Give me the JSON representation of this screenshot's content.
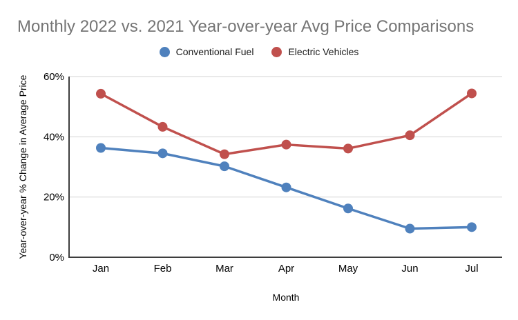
{
  "title": "Monthly 2022 vs. 2021 Year-over-year Avg Price Comparisons",
  "colors": {
    "title_text": "#757575",
    "grid_line": "#e2e2e2",
    "axis_line": "#3d3d3d",
    "tick_text": "#000000",
    "background": "#ffffff"
  },
  "chart_data": {
    "type": "line",
    "title": "Monthly 2022 vs. 2021 Year-over-year Avg Price Comparisons",
    "categories": [
      "Jan",
      "Feb",
      "Mar",
      "Apr",
      "May",
      "Jun",
      "Jul"
    ],
    "series": [
      {
        "name": "Conventional Fuel",
        "color": "#4f81bd",
        "values": [
          36.3,
          34.5,
          30.2,
          23.2,
          16.2,
          9.5,
          10.0
        ]
      },
      {
        "name": "Electric Vehicles",
        "color": "#c0504d",
        "values": [
          54.3,
          43.3,
          34.2,
          37.4,
          36.1,
          40.5,
          54.4
        ]
      }
    ],
    "xlabel": "Month",
    "ylabel": "Year-over-year % Change in Average Price",
    "ylim": [
      0,
      60
    ],
    "yticks": [
      0,
      20,
      40,
      60
    ],
    "ytick_labels": [
      "0%",
      "20%",
      "40%",
      "60%"
    ],
    "grid": true,
    "legend_position": "top",
    "marker": "circle"
  }
}
